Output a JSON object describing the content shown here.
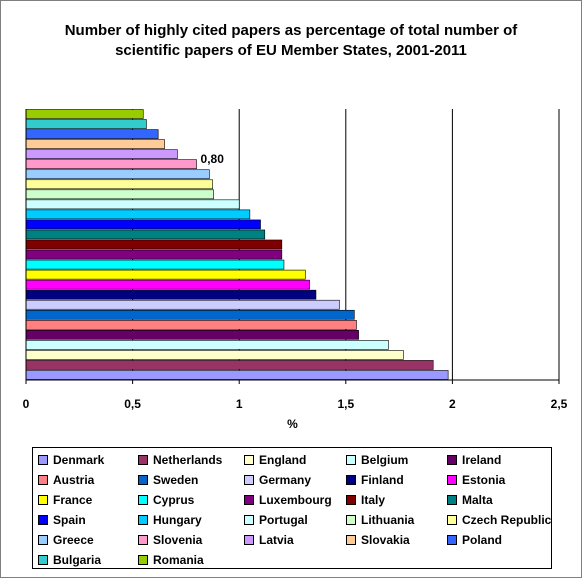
{
  "chart_data": {
    "type": "bar",
    "orientation": "horizontal",
    "title": "Number of highly cited papers as percentage of total number of scientific papers of EU Member States, 2001-2011",
    "xlabel": "%",
    "xlim": [
      0,
      2.5
    ],
    "xticks": [
      "0",
      "0,5",
      "1",
      "1,5",
      "2",
      "2,5"
    ],
    "grid": "vertical major",
    "legend_placement": "bottom",
    "annotation": "0,80",
    "categories": [
      "Denmark",
      "Netherlands",
      "England",
      "Belgium",
      "Ireland",
      "Austria",
      "Sweden",
      "Germany",
      "Finland",
      "Estonia",
      "France",
      "Cyprus",
      "Luxembourg",
      "Italy",
      "Malta",
      "Spain",
      "Hungary",
      "Portugal",
      "Lithuania",
      "Czech Republic",
      "Greece",
      "Slovenia",
      "Latvia",
      "Slovakia",
      "Poland",
      "Bulgaria",
      "Romania"
    ],
    "values": [
      1.98,
      1.91,
      1.77,
      1.7,
      1.56,
      1.55,
      1.54,
      1.47,
      1.36,
      1.33,
      1.31,
      1.21,
      1.2,
      1.2,
      1.12,
      1.1,
      1.05,
      1.0,
      0.88,
      0.875,
      0.86,
      0.8,
      0.71,
      0.65,
      0.62,
      0.565,
      0.55
    ],
    "colors": [
      "#9999ff",
      "#993366",
      "#ffffcc",
      "#ccffff",
      "#660066",
      "#ff8080",
      "#0066cc",
      "#ccccff",
      "#000080",
      "#ff00ff",
      "#ffff00",
      "#00ffff",
      "#800080",
      "#800000",
      "#008080",
      "#0000ff",
      "#00ccff",
      "#ccffff",
      "#ccffcc",
      "#ffff99",
      "#99ccff",
      "#ff99cc",
      "#cc99ff",
      "#ffcc99",
      "#3366ff",
      "#33cccc",
      "#99cc00"
    ]
  }
}
